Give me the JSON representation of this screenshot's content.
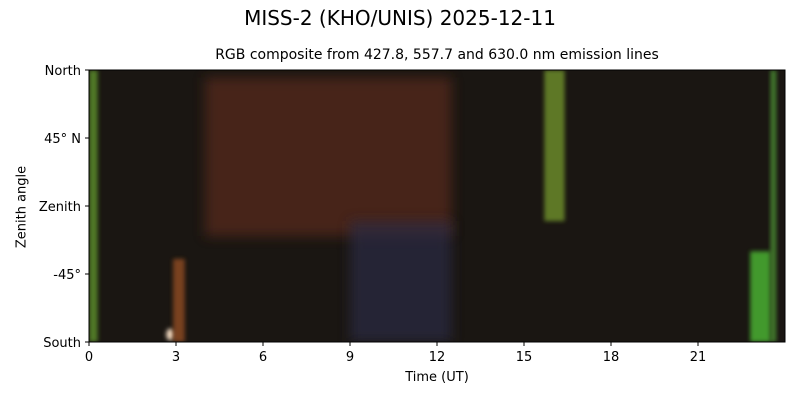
{
  "chart_data": {
    "type": "heatmap",
    "title": "MISS-2 (KHO/UNIS) 2025-12-11",
    "subtitle": "RGB composite from 427.8, 557.7 and 630.0 nm emission lines",
    "xlabel": "Time (UT)",
    "ylabel": "Zenith angle",
    "xlim": [
      0,
      24
    ],
    "x_ticks": [
      0,
      3,
      6,
      9,
      12,
      15,
      18,
      21
    ],
    "x_tick_labels": [
      "0",
      "3",
      "6",
      "9",
      "12",
      "15",
      "18",
      "21"
    ],
    "y_ticks": [
      90,
      45,
      0,
      -45,
      -90
    ],
    "y_tick_labels": [
      "North",
      "45° N",
      "Zenith",
      "-45°",
      "South"
    ],
    "ylim": [
      -90,
      90
    ],
    "color_channels": [
      "427.8 nm",
      "557.7 nm",
      "630.0 nm"
    ],
    "background_color": "#1a1612",
    "features": [
      {
        "kind": "green-streak",
        "t_start": 0.0,
        "t_end": 0.3,
        "za_top": 90,
        "za_bottom": -90,
        "color": "#5a8a2a"
      },
      {
        "kind": "red-band",
        "t_start": 4.0,
        "t_end": 12.5,
        "za_top": 85,
        "za_bottom": -20,
        "color": "#5a2a1a"
      },
      {
        "kind": "blue-region",
        "t_start": 9.0,
        "t_end": 12.5,
        "za_top": -10,
        "za_bottom": -90,
        "color": "#2a2a45"
      },
      {
        "kind": "bright-spot",
        "t": 2.8,
        "za": -85,
        "color": "#f0d8c0"
      },
      {
        "kind": "orange-streak",
        "t_start": 2.9,
        "t_end": 3.3,
        "za_top": -35,
        "za_bottom": -90,
        "color": "#8a4a20"
      },
      {
        "kind": "green-arc",
        "t_start": 15.7,
        "t_end": 16.4,
        "za_top": 90,
        "za_bottom": -10,
        "color": "#6a8a2a"
      },
      {
        "kind": "green-streak",
        "t_start": 22.8,
        "t_end": 23.5,
        "za_top": -30,
        "za_bottom": -90,
        "color": "#4ab030"
      },
      {
        "kind": "green-streak",
        "t_start": 23.5,
        "t_end": 23.7,
        "za_top": 90,
        "za_bottom": -90,
        "color": "#4a8a30"
      }
    ]
  }
}
